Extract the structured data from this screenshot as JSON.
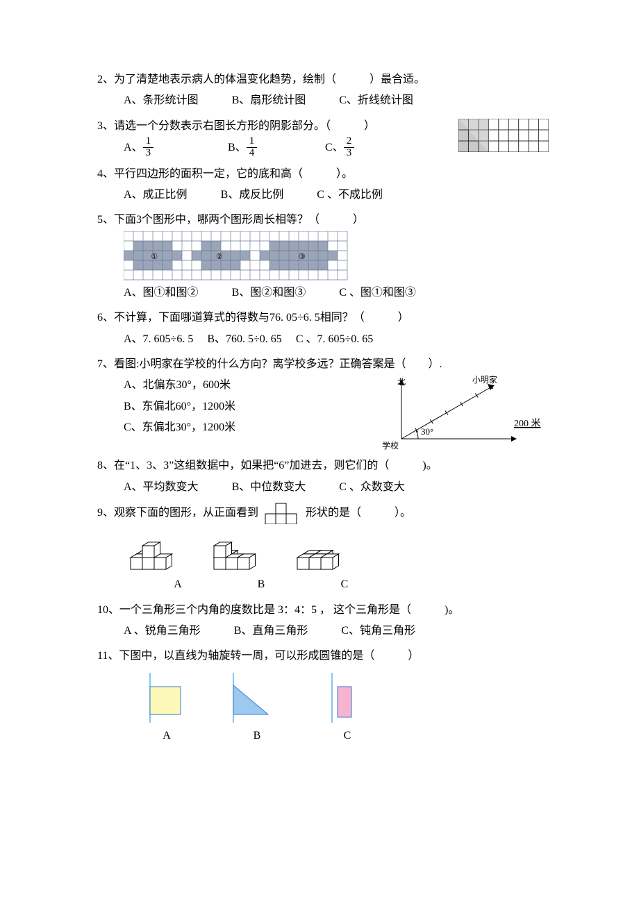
{
  "q2": {
    "text": "2、为了清楚地表示病人的体温变化趋势，绘制（　　　）最合适。",
    "a": "A、条形统计图",
    "b": "B、扇形统计图",
    "c": "C、折线统计图"
  },
  "q3": {
    "text": "3、请选一个分数表示右图长方形的阴影部分。（　　　）",
    "a_pre": "A、",
    "a_num": "1",
    "a_den": "3",
    "b_pre": "B、",
    "b_num": "1",
    "b_den": "4",
    "c_pre": "C、",
    "c_num": "2",
    "c_den": "3",
    "grid": {
      "cols": 9,
      "rows": 3,
      "shaded_cols": 3,
      "fill": "#c9c9c9",
      "stroke": "#333"
    }
  },
  "q4": {
    "text": "4、平行四边形的面积一定，它的底和高（　　　）。",
    "a": "A、成正比例",
    "b": "B、成反比例",
    "c": "C 、不成比例"
  },
  "q5": {
    "text": "5、下面3个图形中，哪两个图形周长相等？（　　　）",
    "a": "A、图①和图②",
    "b": "B、图②和图③",
    "c": "C 、图①和图③",
    "grid": {
      "cols": 23,
      "rows": 5,
      "cell": 14,
      "grid_stroke": "#6b7a99",
      "shade_fill": "#9aa5b8",
      "shapes": [
        {
          "label": "①",
          "cells": [
            [
              1,
              1
            ],
            [
              2,
              1
            ],
            [
              3,
              1
            ],
            [
              4,
              1
            ],
            [
              0,
              2
            ],
            [
              1,
              2
            ],
            [
              2,
              2
            ],
            [
              3,
              2
            ],
            [
              4,
              2
            ],
            [
              5,
              2
            ],
            [
              1,
              3
            ],
            [
              2,
              3
            ],
            [
              3,
              3
            ],
            [
              4,
              3
            ]
          ]
        },
        {
          "label": "②",
          "cells": [
            [
              8,
              1
            ],
            [
              9,
              1
            ],
            [
              7,
              2
            ],
            [
              8,
              2
            ],
            [
              9,
              2
            ],
            [
              10,
              2
            ],
            [
              11,
              2
            ],
            [
              12,
              2
            ],
            [
              8,
              3
            ],
            [
              9,
              3
            ],
            [
              10,
              3
            ],
            [
              11,
              3
            ]
          ]
        },
        {
          "label": "③",
          "cells": [
            [
              15,
              1
            ],
            [
              16,
              1
            ],
            [
              17,
              1
            ],
            [
              18,
              1
            ],
            [
              19,
              1
            ],
            [
              20,
              1
            ],
            [
              14,
              2
            ],
            [
              15,
              2
            ],
            [
              16,
              2
            ],
            [
              17,
              2
            ],
            [
              18,
              2
            ],
            [
              19,
              2
            ],
            [
              20,
              2
            ],
            [
              21,
              2
            ],
            [
              15,
              3
            ],
            [
              16,
              3
            ],
            [
              17,
              3
            ],
            [
              18,
              3
            ],
            [
              19,
              3
            ],
            [
              20,
              3
            ]
          ]
        }
      ]
    }
  },
  "q6": {
    "text": "6、不计算，下面哪道算式的得数与76. 05÷6. 5相同？（　　　）",
    "a": "A、7. 605÷6. 5",
    "b": "B、760. 5÷0. 65",
    "c": "C 、7. 605÷0. 65"
  },
  "q7": {
    "text": "7、看图:小明家在学校的什么方向？离学校多远？正确答案是（　　）.",
    "a": "A、北偏东30°，600米",
    "b": "B、东偏北60°，1200米",
    "c": "C、东偏北30°，1200米",
    "diagram": {
      "north_label": "北",
      "home_label": "小明家",
      "school_label": "学校",
      "angle_label": "30°",
      "scale_label": "200 米",
      "line_color": "#000"
    }
  },
  "q8": {
    "text": "8、在“1、3、3”这组数据中，如果把“6”加进去，则它们的（　　　)。",
    "a": "A、平均数变大",
    "b": "B、中位数变大",
    "c": "C 、众数变大"
  },
  "q9": {
    "pre": "9、观察下面的图形，从正面看到",
    "post": "形状的是（　　　）。",
    "labels": {
      "a": "A",
      "b": "B",
      "c": "C"
    },
    "shape_stroke": "#000",
    "shape_fill": "#fff"
  },
  "q10": {
    "text": "10、一个三角形三个内角的度数比是 3：4：5 ，  这个三角形是（　　　)。",
    "a": "A 、锐角三角形",
    "b": "B、直角三角形",
    "c": "C、钝角三角形"
  },
  "q11": {
    "text": "11、下图中，以直线为轴旋转一周，可以形成圆锥的是（　　　）",
    "labels": {
      "a": "A",
      "b": "B",
      "c": "C"
    },
    "shapes": {
      "axis_color": "#58b5f0",
      "a_fill": "#fcf8b8",
      "a_stroke": "#2e7bd6",
      "b_fill": "#9ec9ef",
      "b_stroke": "#2e7bd6",
      "c_fill": "#f6b4d0",
      "c_stroke": "#2e7bd6"
    }
  }
}
